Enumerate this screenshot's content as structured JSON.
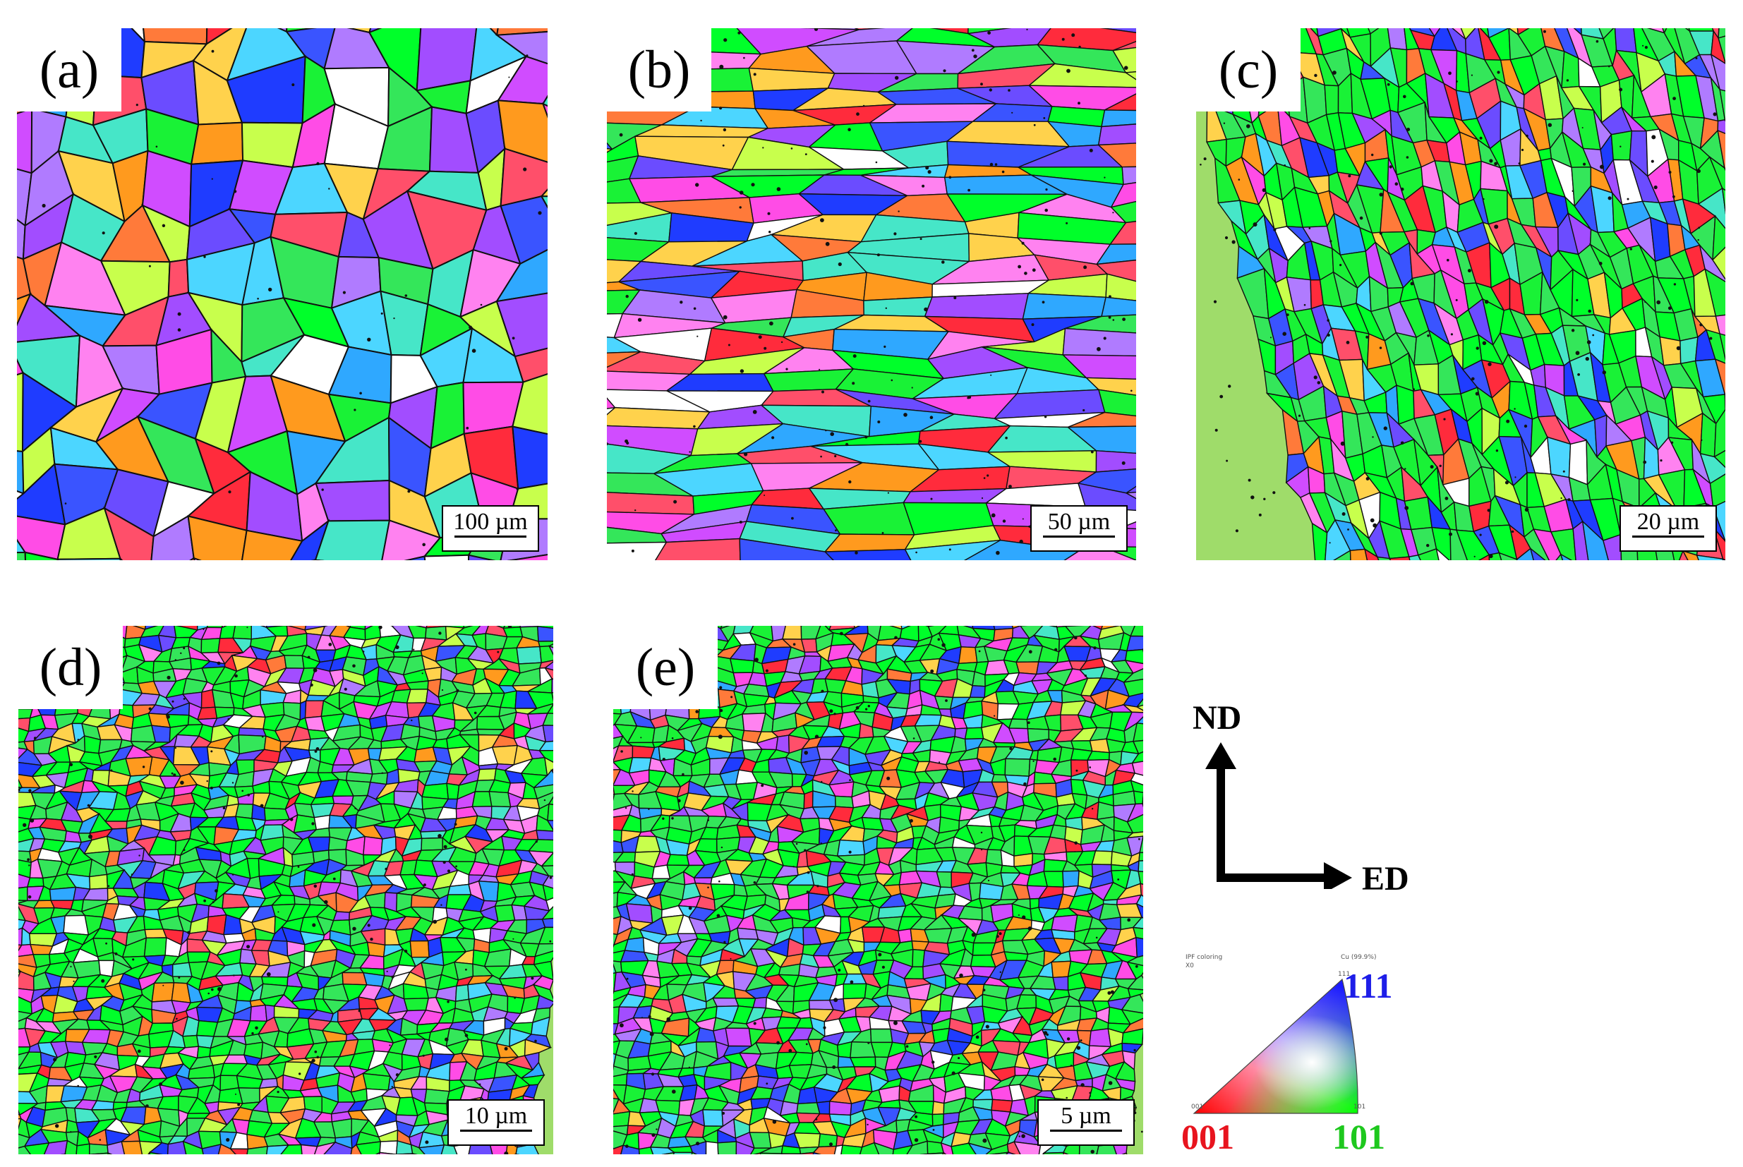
{
  "panels": [
    {
      "id": "a",
      "label": "(a)",
      "scale": "100 µm",
      "seed": 11,
      "grain_style": "large"
    },
    {
      "id": "b",
      "label": "(b)",
      "scale": "50 µm",
      "seed": 23,
      "grain_style": "elongated"
    },
    {
      "id": "c",
      "label": "(c)",
      "scale": "20 µm",
      "seed": 37,
      "grain_style": "banded"
    },
    {
      "id": "d",
      "label": "(d)",
      "scale": "10 µm",
      "seed": 41,
      "grain_style": "fine"
    },
    {
      "id": "e",
      "label": "(e)",
      "scale": "5 µm",
      "seed": 53,
      "grain_style": "fine"
    }
  ],
  "axes": {
    "vertical": "ND",
    "horizontal": "ED"
  },
  "ipf_key": {
    "header_left": "IPF coloring",
    "header_left_sub": "X0",
    "header_right": "Cu (99.9%)",
    "corner_001": "001",
    "corner_101": "101",
    "corner_111": "111",
    "tiny_001": "001",
    "tiny_101": "101",
    "tiny_111": "111"
  },
  "colors": {
    "dir_001": "#e8141e",
    "dir_101": "#1ec81e",
    "dir_111": "#1e1ee8",
    "ipf_palette": [
      "#00ff2a",
      "#19f236",
      "#34e65a",
      "#ff2b3c",
      "#ff4f6a",
      "#ff7a3a",
      "#ff9a1e",
      "#1f3cff",
      "#3a54ff",
      "#6b4cff",
      "#a24dff",
      "#d04cff",
      "#ff4ce6",
      "#ff82f0",
      "#4cd6ff",
      "#2fa8ff",
      "#46e6c8",
      "#c8ff4c",
      "#ffd24c",
      "#ffffff",
      "#b07bff"
    ]
  }
}
